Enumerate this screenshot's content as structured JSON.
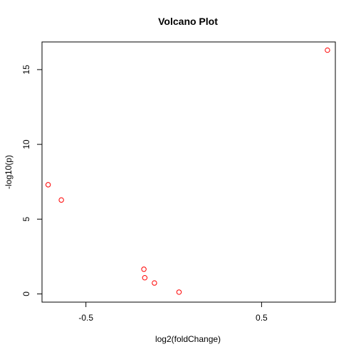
{
  "chart_data": {
    "type": "scatter",
    "title": "Volcano Plot",
    "xlabel": "log2(foldChange)",
    "ylabel": "-log10(p)",
    "xlim": [
      -0.75,
      0.92
    ],
    "ylim": [
      -0.55,
      16.85
    ],
    "x_ticks": [
      -0.5,
      0.5
    ],
    "x_tick_labels": [
      "-0.5",
      "0.5"
    ],
    "y_ticks": [
      0,
      5,
      10,
      15
    ],
    "y_tick_labels": [
      "0",
      "5",
      "10",
      "15"
    ],
    "grid": false,
    "legend": "none",
    "marker": "open-circle",
    "point_color": "#ff0000",
    "series": [
      {
        "x": [
          0.875,
          -0.715,
          -0.64,
          -0.17,
          -0.165,
          -0.11,
          0.03
        ],
        "y": [
          16.3,
          7.3,
          6.28,
          1.65,
          1.08,
          0.73,
          0.12
        ]
      }
    ]
  }
}
